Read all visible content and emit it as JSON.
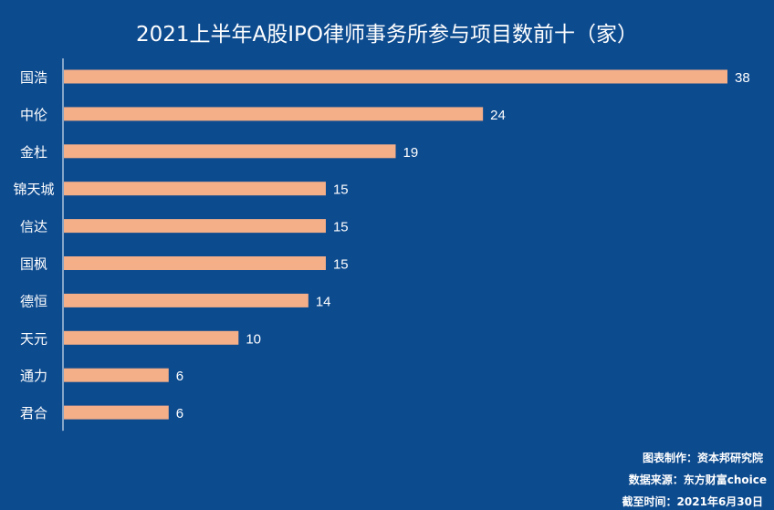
{
  "title": "2021上半年A股IPO律师事务所参与项目数前十（家）",
  "footer": {
    "chart_by": "图表制作：资本邦研究院",
    "source": "数据来源：东方财富choice",
    "as_of": "截至时间：2021年6月30日"
  },
  "colors": {
    "background": "#0d4b8f",
    "bar": "#f4ae88",
    "text": "#ffffff",
    "axis": "#ffffff"
  },
  "chart_data": {
    "type": "bar",
    "orientation": "horizontal",
    "title": "2021上半年A股IPO律师事务所参与项目数前十（家）",
    "categories": [
      "国浩",
      "中伦",
      "金杜",
      "锦天城",
      "信达",
      "国枫",
      "德恒",
      "天元",
      "通力",
      "君合"
    ],
    "values": [
      38,
      24,
      19,
      15,
      15,
      15,
      14,
      10,
      6,
      6
    ],
    "xlim": [
      0,
      38
    ],
    "grid": false,
    "legend": "none",
    "data_labels": true
  }
}
